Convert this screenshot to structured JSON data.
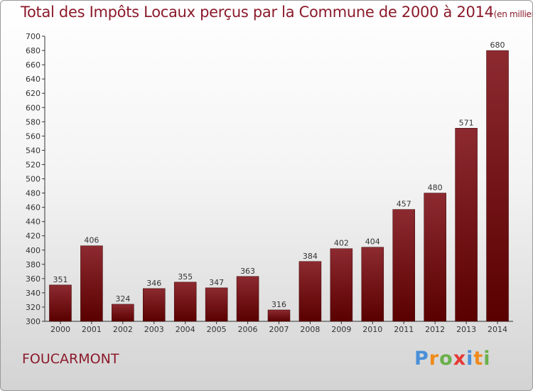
{
  "header": {
    "title": "Total des Impôts Locaux perçus par la Commune de 2000 à 2014",
    "unit": "(en milliers d'€)"
  },
  "footer": {
    "commune": "FOUCARMONT",
    "logo_letters": [
      "P",
      "r",
      "o",
      "x",
      "i",
      "t",
      "i"
    ]
  },
  "colors": {
    "title": "#8b1a2b",
    "bar_top": "#8c2a30",
    "bar_bottom": "#5a0000",
    "logo": [
      "#4a90d9",
      "#f08a1c",
      "#6ab04c",
      "#e53935",
      "#4a90d9",
      "#f08a1c",
      "#6ab04c"
    ]
  },
  "chart_data": {
    "type": "bar",
    "categories": [
      "2000",
      "2001",
      "2002",
      "2003",
      "2004",
      "2005",
      "2006",
      "2007",
      "2008",
      "2009",
      "2010",
      "2011",
      "2012",
      "2013",
      "2014"
    ],
    "values": [
      351,
      406,
      324,
      346,
      355,
      347,
      363,
      316,
      384,
      402,
      404,
      457,
      480,
      571,
      680
    ],
    "ylim": [
      300,
      700
    ],
    "ytick_step": 20,
    "grid": false
  }
}
